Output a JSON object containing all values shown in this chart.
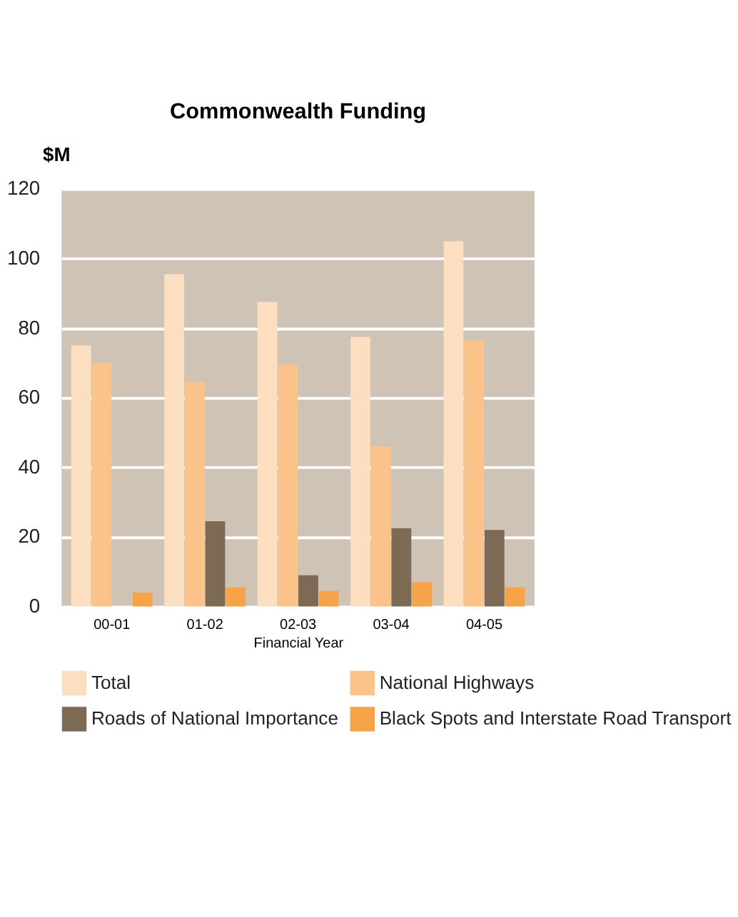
{
  "chart_data": {
    "type": "bar",
    "title": "Commonwealth Funding",
    "ylabel": "$M",
    "xlabel": "Financial Year",
    "categories": [
      "00-01",
      "01-02",
      "02-03",
      "03-04",
      "04-05"
    ],
    "series": [
      {
        "name": "Total",
        "color": "#fcdec0",
        "values": [
          75,
          95.5,
          87.5,
          77.5,
          105
        ]
      },
      {
        "name": "National Highways",
        "color": "#fbc38a",
        "values": [
          70,
          64.5,
          69.5,
          46,
          76.5
        ]
      },
      {
        "name": "Roads of National Importance",
        "color": "#7d6a54",
        "values": [
          null,
          24.5,
          9,
          22.5,
          22
        ]
      },
      {
        "name": "Black Spots and Interstate Road Transport",
        "color": "#f6a34a",
        "values": [
          4,
          5.5,
          4.5,
          7,
          5.5
        ]
      }
    ],
    "ylim": [
      0,
      120
    ],
    "yticks": [
      0,
      20,
      40,
      60,
      80,
      100,
      120
    ],
    "grid": "y",
    "legend": "bottom"
  }
}
